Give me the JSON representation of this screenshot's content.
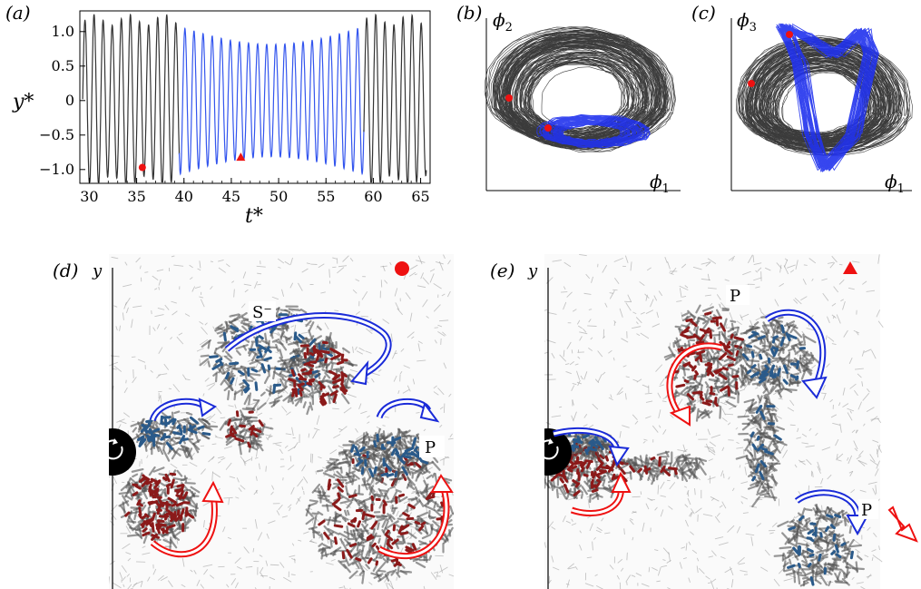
{
  "panels": {
    "a": {
      "label": "(a)"
    },
    "b": {
      "label": "(b)",
      "xlabel": "ϕ",
      "xsub": "1",
      "ylabel": "ϕ",
      "ysub": "2"
    },
    "c": {
      "label": "(c)",
      "xlabel": "ϕ",
      "xsub": "1",
      "ylabel": "ϕ",
      "ysub": "3"
    },
    "d": {
      "label": "(d)",
      "ylabel": "y",
      "tags": [
        "S⁻",
        "P"
      ]
    },
    "e": {
      "label": "(e)",
      "ylabel": "y",
      "tags": [
        "P",
        "P"
      ]
    }
  },
  "chart_data": [
    {
      "type": "line",
      "panel": "a",
      "xlabel": "t*",
      "ylabel": "y*",
      "xlim": [
        29,
        66
      ],
      "ylim": [
        -1.2,
        1.3
      ],
      "xticks": [
        30,
        35,
        40,
        45,
        50,
        55,
        60,
        65
      ],
      "yticks": [
        1.0,
        0.5,
        0,
        -0.5,
        -1.0
      ],
      "ytick_labels": [
        "1.0",
        "0.5",
        "0",
        "−0.5",
        "−1.0"
      ],
      "xtick_labels": [
        "30",
        "35",
        "40",
        "45",
        "50",
        "55",
        "60",
        "65"
      ],
      "series": [
        {
          "color": "#333333",
          "t_range": [
            29.3,
            39.5
          ],
          "period": 0.96,
          "amplitude_range": [
            1.05,
            1.25
          ]
        },
        {
          "color": "#3355ee",
          "t_range": [
            39.5,
            59.0
          ],
          "period": 0.96,
          "amplitude_range": [
            0.75,
            1.05
          ]
        },
        {
          "color": "#333333",
          "t_range": [
            59.0,
            65.6
          ],
          "period": 0.96,
          "amplitude_range": [
            1.05,
            1.25
          ]
        }
      ],
      "markers": [
        {
          "shape": "circle",
          "color": "#ee1111",
          "x": 35.6,
          "y": -0.97
        },
        {
          "shape": "triangle",
          "color": "#ee1111",
          "x": 46.0,
          "y": -0.82
        }
      ]
    },
    {
      "type": "scatter",
      "panel": "b",
      "description_series": [
        "black trajectory",
        "blue trajectory"
      ],
      "markers": [
        {
          "shape": "circle",
          "color": "#ee1111"
        },
        {
          "shape": "circle",
          "color": "#ee1111"
        }
      ]
    },
    {
      "type": "scatter",
      "panel": "c",
      "description_series": [
        "black trajectory",
        "blue trajectory"
      ],
      "markers": [
        {
          "shape": "circle",
          "color": "#ee1111"
        },
        {
          "shape": "circle",
          "color": "#ee1111"
        }
      ]
    }
  ],
  "colors": {
    "red": "#ee1111",
    "blue": "#1a2bd8",
    "black": "#222222",
    "vort_red": "#8b1a1a",
    "vort_blue": "#2a5a8a"
  }
}
